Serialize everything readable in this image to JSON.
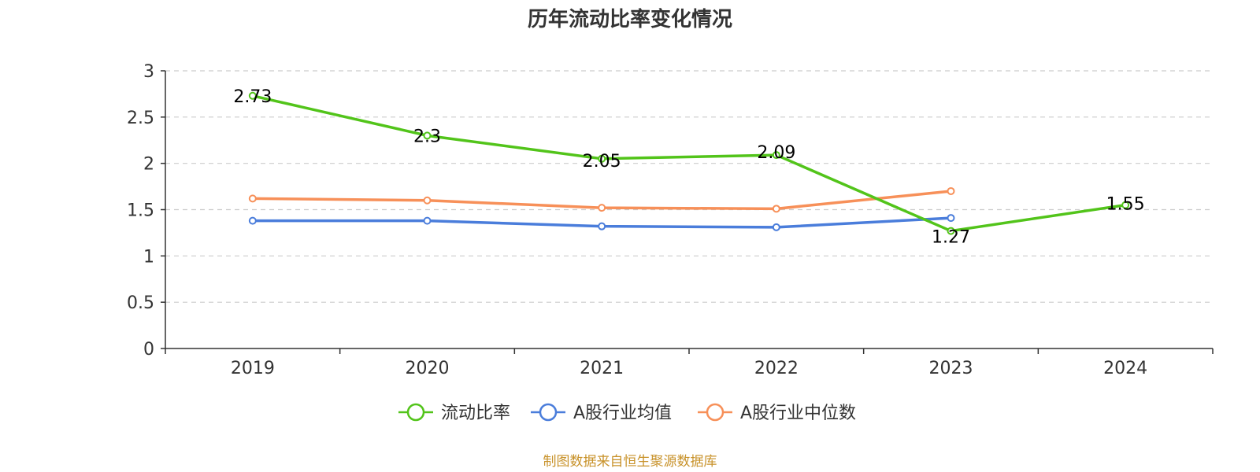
{
  "chart_data": {
    "type": "line",
    "title": "历年流动比率变化情况",
    "categories": [
      "2019",
      "2020",
      "2021",
      "2022",
      "2023",
      "2024"
    ],
    "ylim": [
      0,
      3
    ],
    "yticks": [
      "0",
      "0.5",
      "1",
      "1.5",
      "2",
      "2.5",
      "3"
    ],
    "grid": true,
    "legend_position": "bottom",
    "series": [
      {
        "name": "流动比率",
        "color": "#52c41a",
        "values": [
          2.73,
          2.3,
          2.05,
          2.09,
          1.27,
          1.55
        ],
        "labels": [
          "2.73",
          "2.3",
          "2.05",
          "2.09",
          "1.27",
          "1.55"
        ]
      },
      {
        "name": "A股行业均值",
        "color": "#4a7ddb",
        "values": [
          1.38,
          1.38,
          1.32,
          1.31,
          1.41,
          null
        ]
      },
      {
        "name": "A股行业中位数",
        "color": "#f79059",
        "values": [
          1.62,
          1.6,
          1.52,
          1.51,
          1.7,
          null
        ]
      }
    ]
  },
  "source": "制图数据来自恒生聚源数据库"
}
